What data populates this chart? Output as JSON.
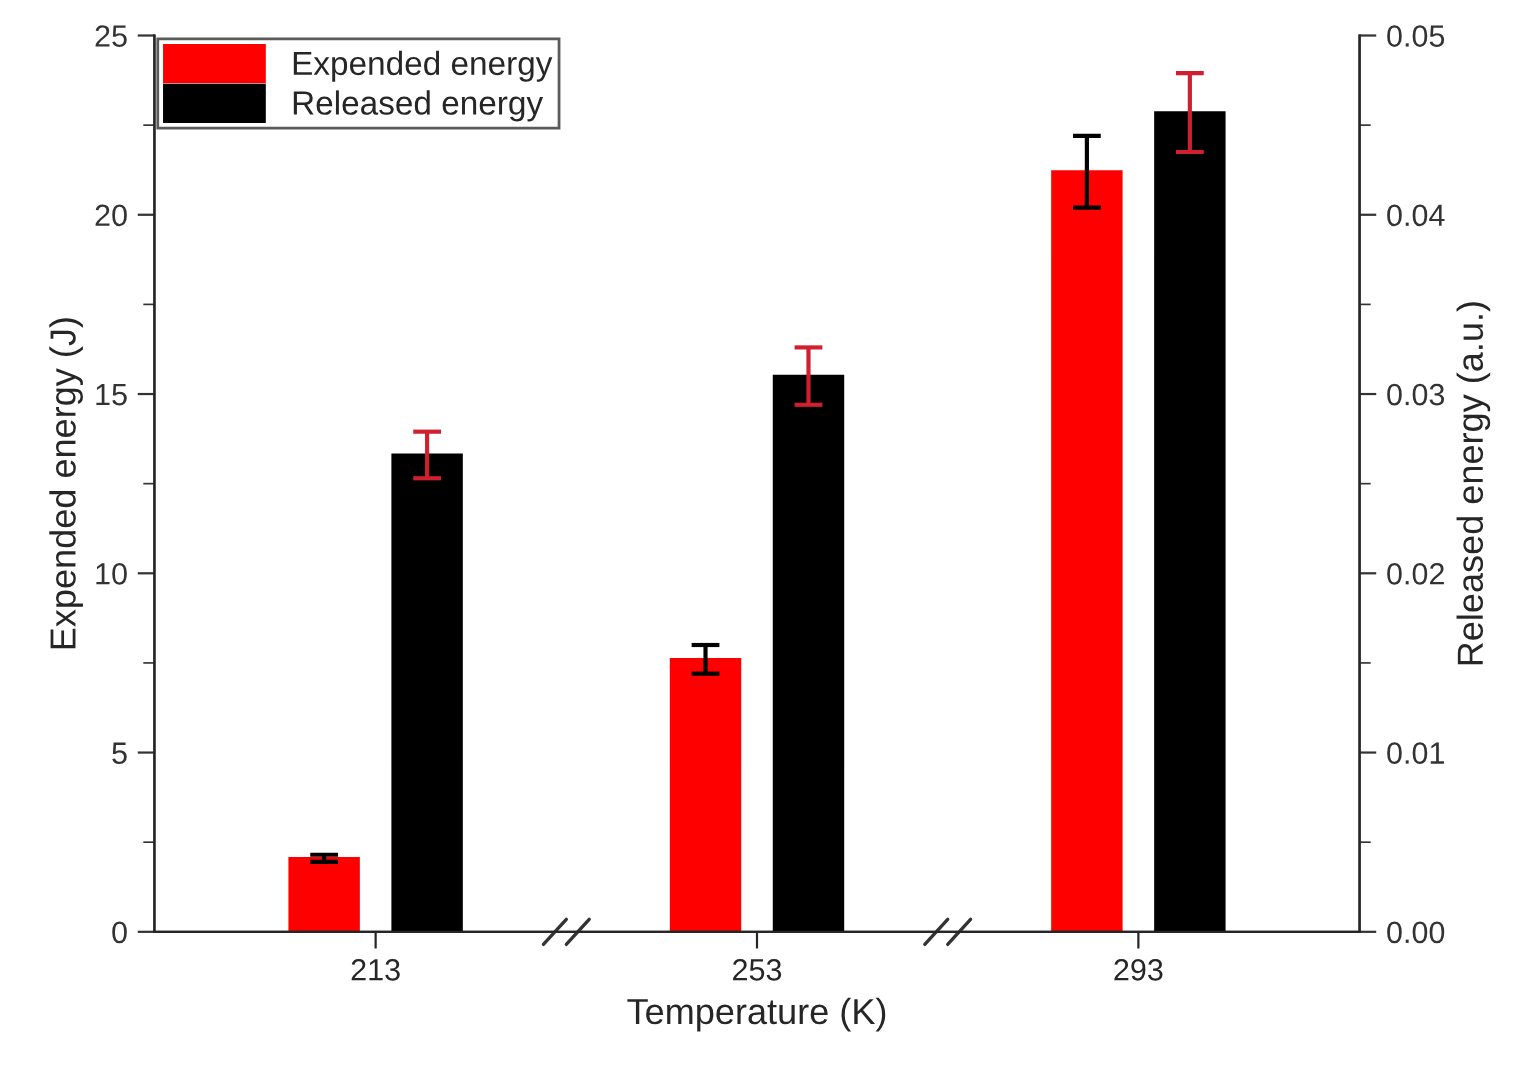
{
  "chart_data": {
    "type": "bar",
    "xlabel": "Temperature (K)",
    "ylabel": "Expended energy (J)",
    "y2label": "Released energy (a.u.)",
    "categories": [
      "213",
      "253",
      "293"
    ],
    "series": [
      {
        "name": "Expended energy",
        "color": "#ff0000",
        "values": [
          2.05,
          7.6,
          21.2
        ],
        "errors": [
          0.1,
          0.4,
          1.0
        ]
      },
      {
        "name": "Released energy",
        "color": "#000000",
        "axis": "y2",
        "values": [
          0.0266,
          0.031,
          0.0457
        ],
        "errors": [
          0.0013,
          0.0016,
          0.0022
        ]
      }
    ],
    "ylim": [
      0,
      25
    ],
    "yticks": [
      0,
      5,
      10,
      15,
      20,
      25
    ],
    "y2lim": [
      0,
      0.05
    ],
    "y2ticks": [
      {
        "value": 0,
        "label": "0.00"
      },
      0.01,
      0.02,
      0.03,
      0.04,
      {
        "value": 0.05,
        "label": "0.05"
      }
    ],
    "legend": "top left",
    "grid": false
  }
}
